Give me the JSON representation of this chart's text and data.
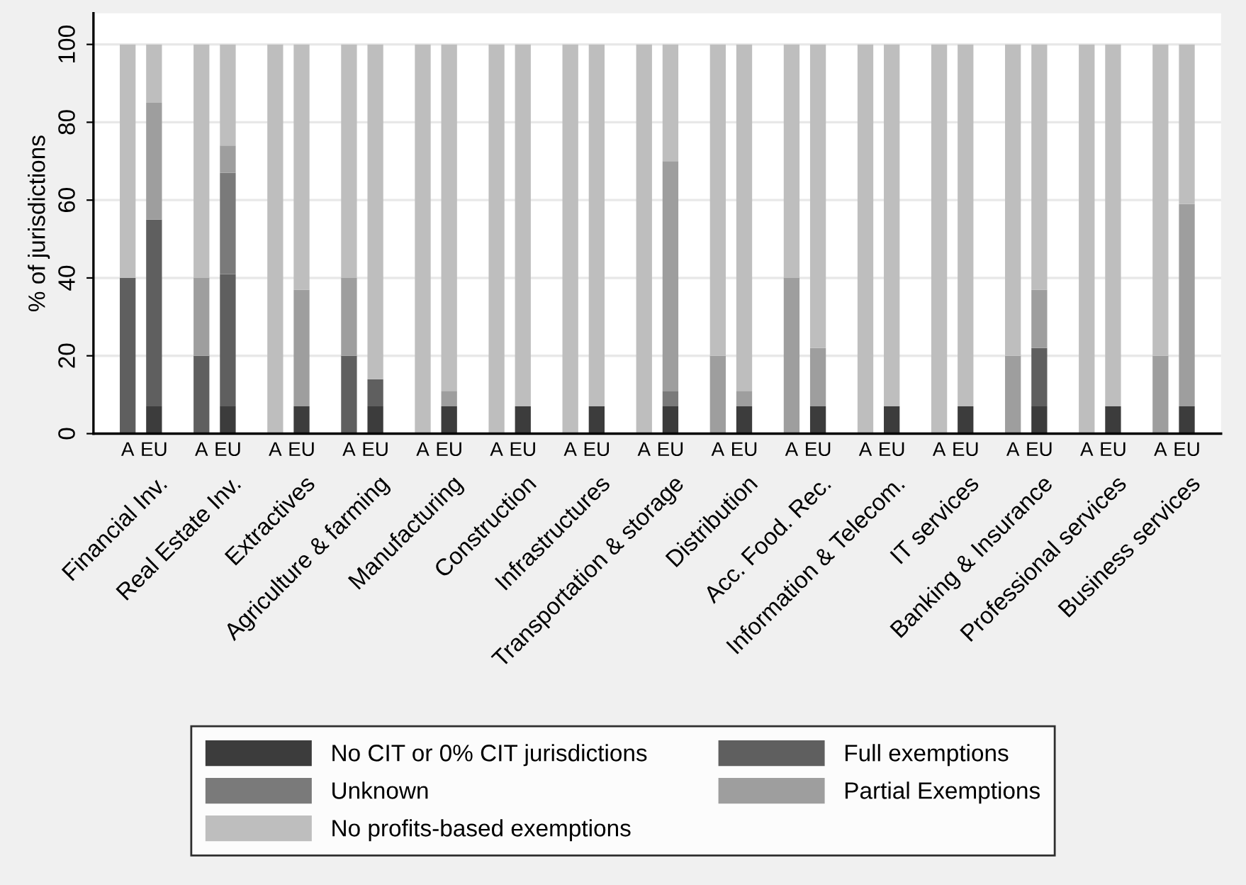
{
  "chart_data": {
    "type": "bar",
    "stacked": true,
    "ylabel": "% of jurisdictions",
    "categories": [
      "A",
      "EU",
      "A",
      "EU",
      "A",
      "EU",
      "A",
      "EU",
      "A",
      "EU",
      "A",
      "EU",
      "A",
      "EU",
      "A",
      "EU",
      "A",
      "EU",
      "A",
      "EU",
      "A",
      "EU",
      "A",
      "EU",
      "A",
      "EU",
      "A",
      "EU",
      "A",
      "EU"
    ],
    "annotations": [
      "Financial Inv.",
      "Real Estate Inv.",
      "Extractives",
      "Agriculture & farming",
      "Manufacturing",
      "Construction",
      "Infrastructures",
      "Transportation & storage",
      "Distribution",
      "Acc. Food. Rec.",
      "Information & Telecom.",
      "IT services",
      "Banking & Insurance",
      "Professional services",
      "Business services"
    ],
    "series": [
      {
        "name": "No CIT or 0% CIT jurisdictions",
        "color": "#3c3c3c",
        "values": [
          0,
          7,
          0,
          7,
          0,
          7,
          0,
          7,
          0,
          7,
          0,
          7,
          0,
          7,
          0,
          7,
          0,
          7,
          0,
          7,
          0,
          7,
          0,
          7,
          0,
          7,
          0,
          7,
          0,
          7
        ]
      },
      {
        "name": "Full exemptions",
        "color": "#5f5f5f",
        "values": [
          40,
          48,
          20,
          34,
          0,
          0,
          20,
          7,
          0,
          0,
          0,
          0,
          0,
          0,
          0,
          0,
          0,
          0,
          0,
          0,
          0,
          0,
          0,
          0,
          0,
          15,
          0,
          0,
          0,
          0
        ]
      },
      {
        "name": "Unknown",
        "color": "#7a7a7a",
        "values": [
          0,
          0,
          0,
          26,
          0,
          0,
          0,
          0,
          0,
          0,
          0,
          0,
          0,
          0,
          0,
          4,
          0,
          0,
          0,
          0,
          0,
          0,
          0,
          0,
          0,
          0,
          0,
          0,
          0,
          0
        ]
      },
      {
        "name": "Partial Exemptions",
        "color": "#9e9e9e",
        "values": [
          0,
          30,
          20,
          7,
          0,
          30,
          20,
          0,
          0,
          4,
          0,
          0,
          0,
          0,
          0,
          59,
          20,
          4,
          40,
          15,
          0,
          0,
          0,
          0,
          20,
          15,
          0,
          0,
          20,
          52
        ]
      },
      {
        "name": "No profits-based exemptions",
        "color": "#bebebe",
        "values": [
          60,
          15,
          60,
          26,
          100,
          63,
          60,
          86,
          100,
          89,
          100,
          93,
          100,
          93,
          100,
          30,
          80,
          89,
          60,
          78,
          100,
          93,
          100,
          93,
          80,
          63,
          100,
          93,
          80,
          41
        ]
      }
    ],
    "ylim": [
      0,
      108
    ],
    "yticks": [
      0,
      20,
      40,
      60,
      80,
      100
    ],
    "grid": "y",
    "legend": "bottom"
  }
}
